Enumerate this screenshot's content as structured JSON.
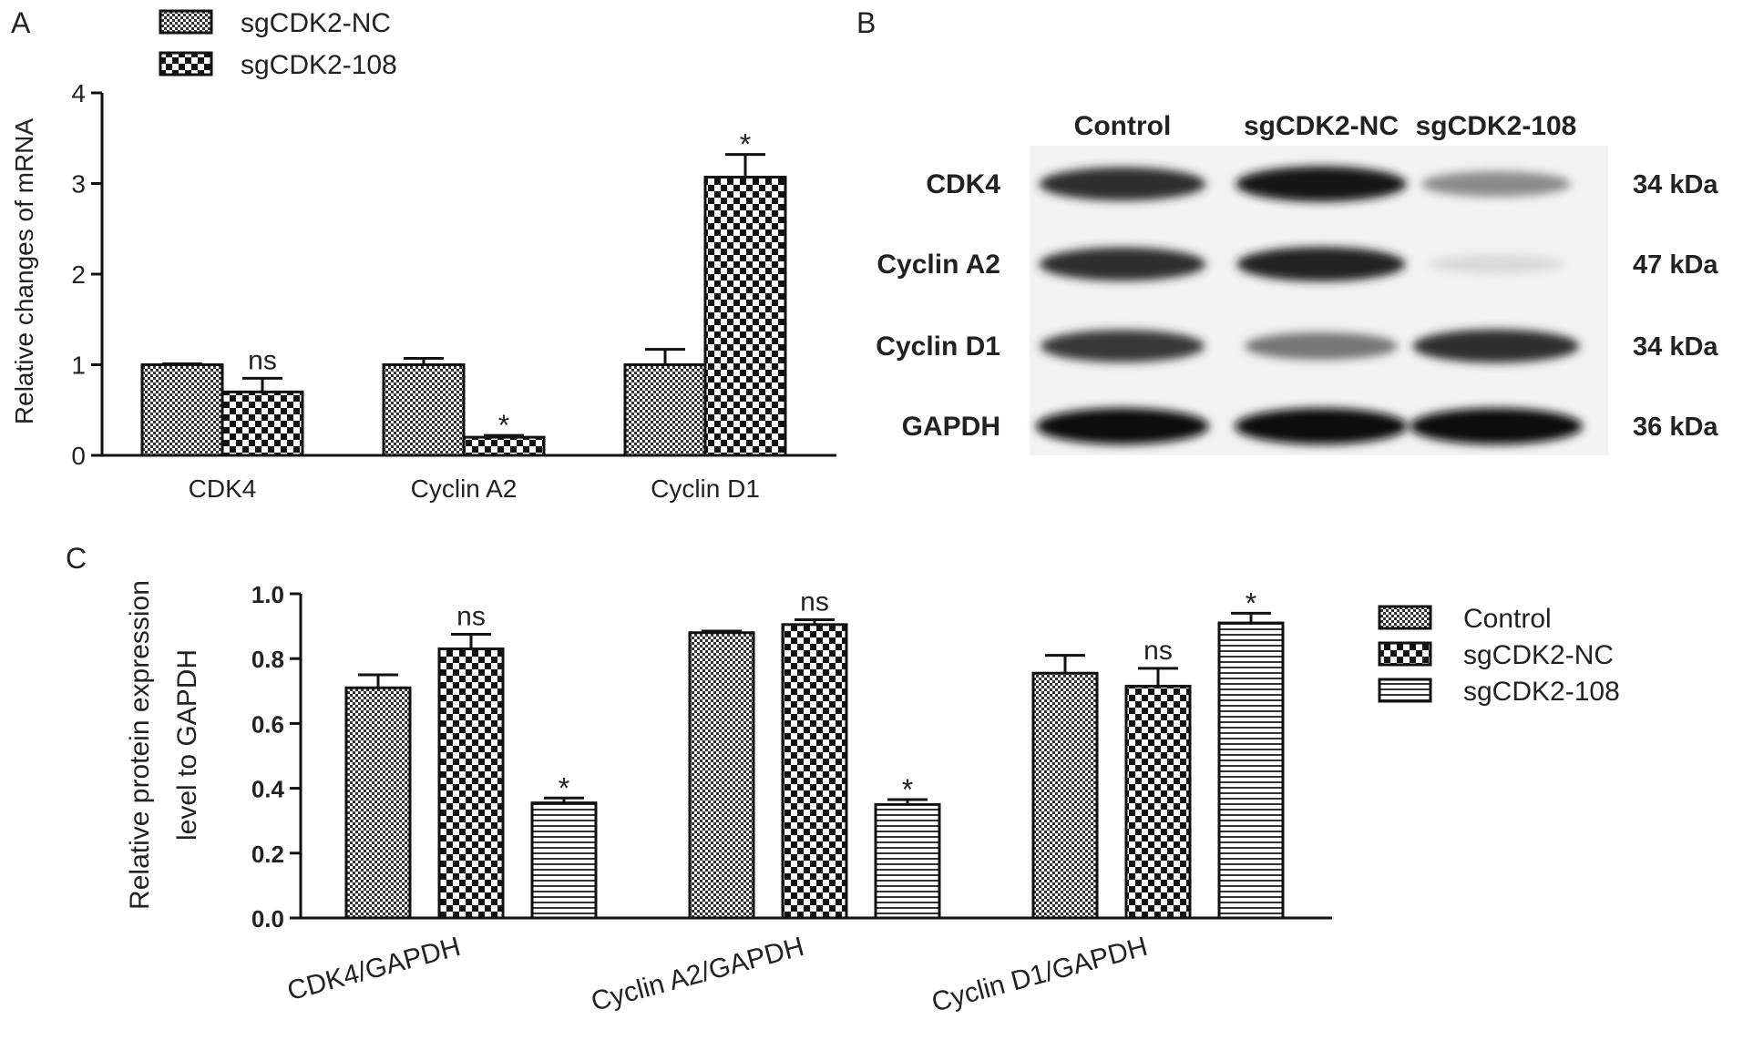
{
  "panel_labels": {
    "a": "A",
    "b": "B",
    "c": "C"
  },
  "chart_data": [
    {
      "type": "bar",
      "panel": "A",
      "ylabel": "Relative changes of mRNA",
      "ylim": [
        0,
        4
      ],
      "yticks": [
        "0",
        "1",
        "2",
        "3",
        "4"
      ],
      "categories": [
        "CDK4",
        "Cyclin A2",
        "Cyclin D1"
      ],
      "legend_position": "top-left",
      "series": [
        {
          "name": "sgCDK2-NC",
          "pattern": "fine-check",
          "values": [
            1.0,
            1.0,
            1.0
          ],
          "errors": [
            0.01,
            0.07,
            0.17
          ],
          "annotations": [
            "",
            "",
            ""
          ]
        },
        {
          "name": "sgCDK2-108",
          "pattern": "coarse-check",
          "values": [
            0.7,
            0.2,
            3.07
          ],
          "errors": [
            0.15,
            0.02,
            0.25
          ],
          "annotations": [
            "ns",
            "*",
            "*"
          ]
        }
      ]
    },
    {
      "type": "bar",
      "panel": "C",
      "ylabel": "Relative protein expression level to GAPDH",
      "ylabel_lines": [
        "Relative protein expression",
        "level to GAPDH"
      ],
      "ylim": [
        0,
        1.0
      ],
      "yticks": [
        "0.0",
        "0.2",
        "0.4",
        "0.6",
        "0.8",
        "1.0"
      ],
      "categories": [
        "CDK4/GAPDH",
        "Cyclin A2/GAPDH",
        "Cyclin D1/GAPDH"
      ],
      "legend_position": "right",
      "series": [
        {
          "name": "Control",
          "pattern": "fine-check",
          "values": [
            0.71,
            0.88,
            0.755
          ],
          "errors": [
            0.04,
            0.005,
            0.055
          ],
          "annotations": [
            "",
            "",
            ""
          ]
        },
        {
          "name": "sgCDK2-NC",
          "pattern": "coarse-check",
          "values": [
            0.83,
            0.905,
            0.715
          ],
          "errors": [
            0.045,
            0.015,
            0.055
          ],
          "annotations": [
            "ns",
            "ns",
            "ns"
          ]
        },
        {
          "name": "sgCDK2-108",
          "pattern": "horizontal-lines",
          "values": [
            0.355,
            0.35,
            0.91
          ],
          "errors": [
            0.015,
            0.015,
            0.03
          ],
          "annotations": [
            "*",
            "*",
            "*"
          ]
        }
      ]
    }
  ],
  "blot": {
    "lanes": [
      "Control",
      "sgCDK2-NC",
      "sgCDK2-108"
    ],
    "rows": [
      {
        "protein": "CDK4",
        "size": "34 kDa",
        "intensities": [
          0.85,
          0.95,
          0.45
        ]
      },
      {
        "protein": "Cyclin A2",
        "size": "47 kDa",
        "intensities": [
          0.85,
          0.9,
          0.12
        ]
      },
      {
        "protein": "Cyclin D1",
        "size": "34 kDa",
        "intensities": [
          0.8,
          0.55,
          0.85
        ]
      },
      {
        "protein": "GAPDH",
        "size": "36 kDa",
        "intensities": [
          1.0,
          1.0,
          1.0
        ]
      }
    ]
  }
}
